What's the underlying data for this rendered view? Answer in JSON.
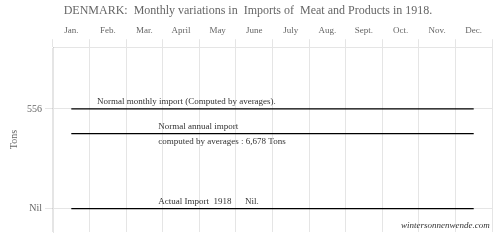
{
  "chart_data": {
    "type": "line",
    "title": "DENMARK:  Monthly variations in  Imports of  Meat and Products in 1918.",
    "categories": [
      "Jan.",
      "Feb.",
      "Mar.",
      "April",
      "May",
      "June",
      "July",
      "Aug.",
      "Sept.",
      "Oct.",
      "Nov.",
      "Dec."
    ],
    "series": [
      {
        "color": "#000000",
        "values": [
          556,
          556,
          556,
          556,
          556,
          556,
          556,
          556,
          556,
          556,
          556,
          556
        ]
      },
      {
        "color": "#000000",
        "values": [
          418,
          418,
          418,
          418,
          418,
          418,
          418,
          418,
          418,
          418,
          418,
          418
        ]
      },
      {
        "color": "#000000",
        "values": [
          0,
          0,
          0,
          0,
          0,
          0,
          0,
          0,
          0,
          0,
          0,
          0
        ]
      }
    ],
    "ylabel": "Tons",
    "ylim": [
      -130,
      900
    ],
    "yticks": [
      556,
      {
        "value": 0,
        "label": "Nil"
      }
    ],
    "grid": true,
    "marker": "none",
    "annotations": [
      "Normal monthly import (Computed by averages).",
      "Normal annual import",
      "computed by averages : 6,678 Tons",
      "Actual Import  1918      Nil.",
      "wintersonnenwende.com"
    ]
  }
}
